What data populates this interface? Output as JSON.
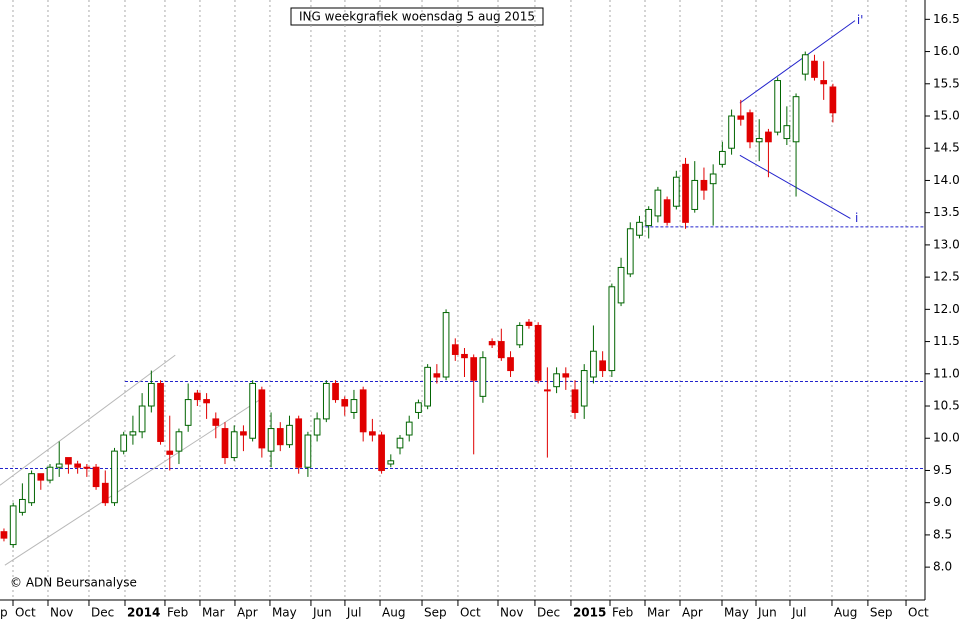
{
  "chart_data": {
    "type": "candlestick",
    "title": "ING weekgrafiek woensdag 5 aug 2015",
    "credit": "© ADN Beursanalyse",
    "up_color": "#006400",
    "down_color": "#e00000",
    "grid": true,
    "xlim": [
      -0.43,
      100
    ],
    "xticks": [
      {
        "value": -2.93,
        "label": "p"
      },
      {
        "value": 0.98,
        "label": "Oct"
      },
      {
        "value": 4.78,
        "label": "Nov"
      },
      {
        "value": 9.23,
        "label": "Dec"
      },
      {
        "value": 13.14,
        "label": "2014"
      },
      {
        "value": 17.48,
        "label": "Feb"
      },
      {
        "value": 21.28,
        "label": "Mar"
      },
      {
        "value": 25.08,
        "label": "Apr"
      },
      {
        "value": 28.88,
        "label": "May"
      },
      {
        "value": 33.33,
        "label": "Jun"
      },
      {
        "value": 37.02,
        "label": "Jul"
      },
      {
        "value": 40.83,
        "label": "Aug"
      },
      {
        "value": 45.39,
        "label": "Sep"
      },
      {
        "value": 49.29,
        "label": "Oct"
      },
      {
        "value": 53.64,
        "label": "Nov"
      },
      {
        "value": 57.65,
        "label": "Dec"
      },
      {
        "value": 61.56,
        "label": "2015"
      },
      {
        "value": 65.8,
        "label": "Feb"
      },
      {
        "value": 69.6,
        "label": "Mar"
      },
      {
        "value": 73.4,
        "label": "Apr"
      },
      {
        "value": 77.96,
        "label": "May"
      },
      {
        "value": 81.65,
        "label": "Jun"
      },
      {
        "value": 85.34,
        "label": "Jul"
      },
      {
        "value": 89.9,
        "label": "Aug"
      },
      {
        "value": 93.8,
        "label": "Sep"
      },
      {
        "value": 97.94,
        "label": "Oct"
      }
    ],
    "ylim": [
      7.49,
      16.8
    ],
    "yticks": [
      {
        "value": 8,
        "label": "8.0"
      },
      8.5,
      {
        "value": 9,
        "label": "9.0"
      },
      9.5,
      {
        "value": 10,
        "label": "10.0"
      },
      10.5,
      {
        "value": 11,
        "label": "11.0"
      },
      11.5,
      {
        "value": 12,
        "label": "12.0"
      },
      12.5,
      {
        "value": 13,
        "label": "13.0"
      },
      13.5,
      {
        "value": 14,
        "label": "14.0"
      },
      14.5,
      {
        "value": 15,
        "label": "15.0"
      },
      15.5,
      {
        "value": 16,
        "label": "16.0"
      },
      16.5
    ],
    "open": [
      8.55,
      8.35,
      8.85,
      9.0,
      9.45,
      9.35,
      9.55,
      9.7,
      9.6,
      9.55,
      9.55,
      9.3,
      9.0,
      9.8,
      10.05,
      10.1,
      10.5,
      10.85,
      9.8,
      9.8,
      10.2,
      10.7,
      10.6,
      10.3,
      10.15,
      9.7,
      10.1,
      10.0,
      10.75,
      9.8,
      10.15,
      9.9,
      10.3,
      9.55,
      10.05,
      10.3,
      10.85,
      10.6,
      10.4,
      10.75,
      10.1,
      10.05,
      9.6,
      9.85,
      10.05,
      10.4,
      10.5,
      11.0,
      10.95,
      11.45,
      11.3,
      11.25,
      10.65,
      11.5,
      11.5,
      11.25,
      11.45,
      11.8,
      11.75,
      10.75,
      10.8,
      11.0,
      10.75,
      10.5,
      10.95,
      11.2,
      11.05,
      12.1,
      12.55,
      13.15,
      13.3,
      13.45,
      13.7,
      13.6,
      14.25,
      13.55,
      14.0,
      13.95,
      14.25,
      14.5,
      15.0,
      15.05,
      14.6,
      14.75,
      14.75,
      14.65,
      14.6,
      15.65,
      15.85,
      15.55,
      15.45
    ],
    "high": [
      8.6,
      9.0,
      9.3,
      9.5,
      9.45,
      9.6,
      9.95,
      9.7,
      9.65,
      9.6,
      9.6,
      9.5,
      9.85,
      10.1,
      10.35,
      10.7,
      11.05,
      10.9,
      10.35,
      10.15,
      10.85,
      10.75,
      10.7,
      10.4,
      10.25,
      10.2,
      10.2,
      10.9,
      10.8,
      10.4,
      10.25,
      10.35,
      10.35,
      10.1,
      10.4,
      10.9,
      10.9,
      10.65,
      10.75,
      10.8,
      10.3,
      10.1,
      9.75,
      10.05,
      10.35,
      10.6,
      11.15,
      11.15,
      12.0,
      11.55,
      11.4,
      11.3,
      11.35,
      11.55,
      11.7,
      11.35,
      11.8,
      11.85,
      11.8,
      11.1,
      11.1,
      11.1,
      10.9,
      11.15,
      11.75,
      11.35,
      12.4,
      12.8,
      13.35,
      13.45,
      13.6,
      13.9,
      13.75,
      14.15,
      14.35,
      14.3,
      14.2,
      14.25,
      14.6,
      15.1,
      15.25,
      15.1,
      14.95,
      14.8,
      15.6,
      15.15,
      15.35,
      16.0,
      15.95,
      15.85,
      15.5
    ],
    "low": [
      8.4,
      8.3,
      8.8,
      8.95,
      9.2,
      9.3,
      9.4,
      9.45,
      9.45,
      9.4,
      9.2,
      8.95,
      8.95,
      9.75,
      9.9,
      10.0,
      10.4,
      9.9,
      9.5,
      9.6,
      10.1,
      10.5,
      10.3,
      10.0,
      9.6,
      9.65,
      9.8,
      9.95,
      9.7,
      9.55,
      9.8,
      9.85,
      9.45,
      9.4,
      9.95,
      10.25,
      10.55,
      10.35,
      10.3,
      9.95,
      9.95,
      9.45,
      9.55,
      9.75,
      9.95,
      10.3,
      10.45,
      10.85,
      10.9,
      11.2,
      10.95,
      9.75,
      10.55,
      11.4,
      11.2,
      10.95,
      11.4,
      11.7,
      10.85,
      9.7,
      10.7,
      10.75,
      10.3,
      10.3,
      10.85,
      10.95,
      10.95,
      12.05,
      12.5,
      13.1,
      13.1,
      13.35,
      13.3,
      13.55,
      13.25,
      13.5,
      13.7,
      13.3,
      14.2,
      14.4,
      14.85,
      14.5,
      14.3,
      14.05,
      14.7,
      14.55,
      13.75,
      15.55,
      15.55,
      15.25,
      14.9
    ],
    "close": [
      8.45,
      8.95,
      9.05,
      9.45,
      9.35,
      9.55,
      9.6,
      9.6,
      9.55,
      9.55,
      9.25,
      9.0,
      9.8,
      10.05,
      10.1,
      10.5,
      10.85,
      9.95,
      9.75,
      10.1,
      10.6,
      10.6,
      10.55,
      10.2,
      9.7,
      10.1,
      10.05,
      10.85,
      9.85,
      10.15,
      9.9,
      10.2,
      9.55,
      10.05,
      10.3,
      10.85,
      10.6,
      10.5,
      10.6,
      10.1,
      10.05,
      9.5,
      9.65,
      10.0,
      10.25,
      10.55,
      11.1,
      10.95,
      11.95,
      11.3,
      11.25,
      10.9,
      11.25,
      11.45,
      11.25,
      11.05,
      11.75,
      11.75,
      10.9,
      10.75,
      11.0,
      10.95,
      10.4,
      11.05,
      11.35,
      11.05,
      12.35,
      12.65,
      13.25,
      13.35,
      13.55,
      13.85,
      13.35,
      14.05,
      13.35,
      14.0,
      13.85,
      14.1,
      14.45,
      15.0,
      14.95,
      14.6,
      14.65,
      14.6,
      15.55,
      14.85,
      15.3,
      15.95,
      15.6,
      15.5,
      15.05
    ],
    "lines": [
      {
        "x": [
          13.14,
          100
        ],
        "y": [
          10.88,
          10.88
        ],
        "color": "#2222cc",
        "dashed": true
      },
      {
        "x": [
          -0.43,
          100
        ],
        "y": [
          9.53,
          9.53
        ],
        "color": "#2222cc",
        "dashed": true
      },
      {
        "x": [
          69.1,
          100
        ],
        "y": [
          13.28,
          13.28
        ],
        "color": "#2222cc",
        "dashed": true
      },
      {
        "x": [
          79.9,
          92.4
        ],
        "y": [
          15.2,
          16.48
        ],
        "color": "#2222cc",
        "dashed": false
      },
      {
        "x": [
          79.9,
          91.9
        ],
        "y": [
          14.39,
          13.41
        ],
        "color": "#2222cc",
        "dashed": false
      },
      {
        "x": [
          -0.43,
          18.6
        ],
        "y": [
          9.27,
          11.29
        ],
        "color": "#b8b8b8",
        "dashed": false
      },
      {
        "x": [
          0.1,
          27.8
        ],
        "y": [
          8.03,
          10.6
        ],
        "color": "#b8b8b8",
        "dashed": false
      }
    ],
    "annotations": [
      {
        "text": "i'",
        "x": 92.6,
        "y": 16.48
      },
      {
        "text": "i",
        "x": 92.4,
        "y": 13.41
      }
    ]
  }
}
